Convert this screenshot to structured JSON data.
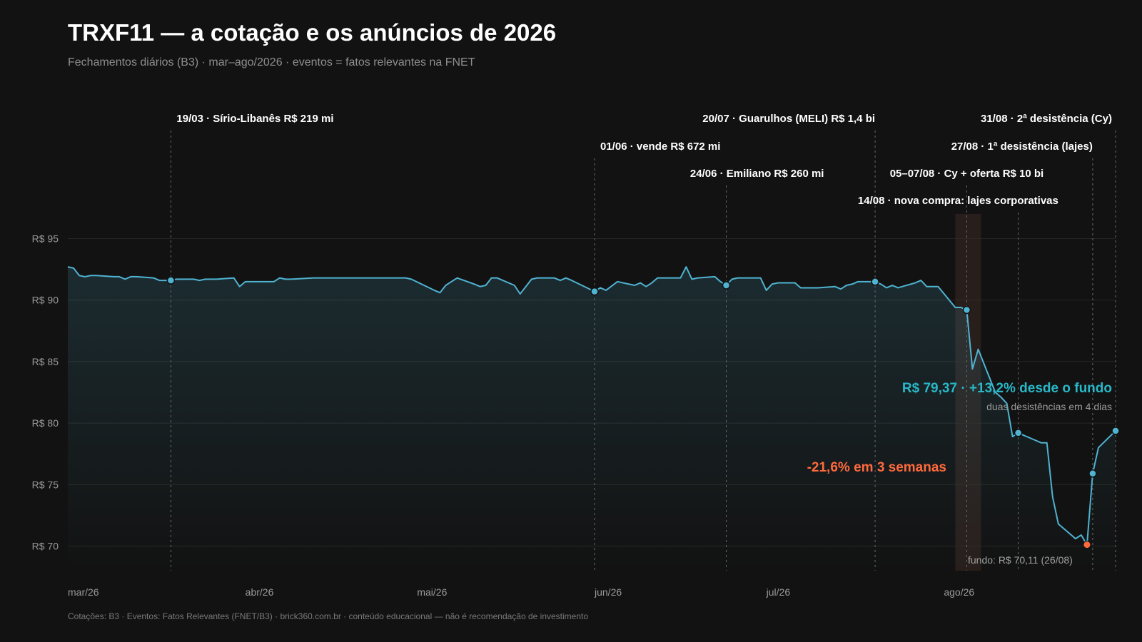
{
  "title": "TRXF11 — a cotação e os anúncios de 2026",
  "subtitle": "Fechamentos diários (B3) · mar–ago/2026 · eventos = fatos relevantes na FNET",
  "source": "Cotações: B3 · Eventos: Fatos Relevantes (FNET/B3) · brick360.com.br · conteúdo educacional — não é recomendação de investimento",
  "colors": {
    "line": "#4fb3d1",
    "highlight": "#ff6a3d",
    "recovery": "#29b8c8",
    "shade": "#3a2a24"
  },
  "annotations": {
    "recovery": "R$ 79,37 · +13,2% desde o fundo",
    "recovery_sub": "duas desistências em 4 dias",
    "drop": "-21,6% em 3 semanas",
    "low": "fundo: R$ 70,11 (26/08)"
  },
  "chart_data": {
    "type": "line",
    "title": "TRXF11 — a cotação e os anúncios de 2026",
    "ylim": [
      68,
      97
    ],
    "yticks": [
      95,
      90,
      85,
      80,
      75,
      70
    ],
    "ytick_labels": [
      "R$ 95",
      "R$ 90",
      "R$ 85",
      "R$ 80",
      "R$ 75",
      "R$ 70"
    ],
    "xticks": [
      {
        "date": "2026-03-01",
        "label": "mar/26"
      },
      {
        "date": "2026-04-01",
        "label": "abr/26"
      },
      {
        "date": "2026-05-01",
        "label": "mai/26"
      },
      {
        "date": "2026-06-01",
        "label": "jun/26"
      },
      {
        "date": "2026-07-01",
        "label": "jul/26"
      },
      {
        "date": "2026-08-01",
        "label": "ago/26"
      }
    ],
    "grid": true,
    "series": [
      {
        "x": [
          "2026-03-01",
          "2026-03-02",
          "2026-03-03",
          "2026-03-04",
          "2026-03-05",
          "2026-03-06",
          "2026-03-09",
          "2026-03-10",
          "2026-03-11",
          "2026-03-12",
          "2026-03-13",
          "2026-03-16",
          "2026-03-17",
          "2026-03-18",
          "2026-03-19",
          "2026-03-20",
          "2026-03-23",
          "2026-03-24",
          "2026-03-25",
          "2026-03-26",
          "2026-03-27",
          "2026-03-30",
          "2026-03-31",
          "2026-04-01",
          "2026-04-02",
          "2026-04-06",
          "2026-04-07",
          "2026-04-08",
          "2026-04-09",
          "2026-04-13",
          "2026-04-14",
          "2026-04-15",
          "2026-04-16",
          "2026-04-20",
          "2026-04-22",
          "2026-04-24",
          "2026-04-27",
          "2026-04-28",
          "2026-04-29",
          "2026-04-30",
          "2026-05-04",
          "2026-05-05",
          "2026-05-06",
          "2026-05-07",
          "2026-05-08",
          "2026-05-11",
          "2026-05-12",
          "2026-05-13",
          "2026-05-14",
          "2026-05-15",
          "2026-05-18",
          "2026-05-19",
          "2026-05-20",
          "2026-05-21",
          "2026-05-22",
          "2026-05-25",
          "2026-05-26",
          "2026-05-27",
          "2026-05-28",
          "2026-06-01",
          "2026-06-02",
          "2026-06-03",
          "2026-06-05",
          "2026-06-08",
          "2026-06-09",
          "2026-06-10",
          "2026-06-11",
          "2026-06-12",
          "2026-06-15",
          "2026-06-16",
          "2026-06-17",
          "2026-06-18",
          "2026-06-19",
          "2026-06-22",
          "2026-06-23",
          "2026-06-24",
          "2026-06-25",
          "2026-06-26",
          "2026-06-29",
          "2026-06-30",
          "2026-07-01",
          "2026-07-02",
          "2026-07-03",
          "2026-07-06",
          "2026-07-07",
          "2026-07-08",
          "2026-07-09",
          "2026-07-10",
          "2026-07-13",
          "2026-07-14",
          "2026-07-15",
          "2026-07-16",
          "2026-07-17",
          "2026-07-20",
          "2026-07-21",
          "2026-07-22",
          "2026-07-23",
          "2026-07-24",
          "2026-07-27",
          "2026-07-28",
          "2026-07-29",
          "2026-07-30",
          "2026-07-31",
          "2026-08-03",
          "2026-08-04",
          "2026-08-05",
          "2026-08-06",
          "2026-08-07",
          "2026-08-10",
          "2026-08-11",
          "2026-08-12",
          "2026-08-13",
          "2026-08-14",
          "2026-08-17",
          "2026-08-18",
          "2026-08-19",
          "2026-08-20",
          "2026-08-21",
          "2026-08-24",
          "2026-08-25",
          "2026-08-26",
          "2026-08-27",
          "2026-08-28",
          "2026-08-31"
        ],
        "y": [
          92.7,
          92.6,
          92.0,
          91.9,
          92.0,
          92.0,
          91.9,
          91.9,
          91.7,
          91.9,
          91.9,
          91.8,
          91.6,
          91.6,
          91.6,
          91.7,
          91.7,
          91.6,
          91.7,
          91.7,
          91.7,
          91.8,
          91.1,
          91.5,
          91.5,
          91.5,
          91.8,
          91.7,
          91.7,
          91.8,
          91.8,
          91.8,
          91.8,
          91.8,
          91.8,
          91.8,
          91.8,
          91.8,
          91.8,
          91.7,
          90.8,
          90.6,
          91.2,
          91.5,
          91.8,
          91.3,
          91.1,
          91.2,
          91.8,
          91.8,
          91.2,
          90.5,
          91.1,
          91.7,
          91.8,
          91.8,
          91.6,
          91.8,
          91.6,
          90.7,
          91.0,
          90.8,
          91.5,
          91.2,
          91.4,
          91.1,
          91.4,
          91.8,
          91.8,
          91.8,
          92.7,
          91.7,
          91.8,
          91.9,
          91.5,
          91.2,
          91.7,
          91.8,
          91.8,
          91.8,
          90.8,
          91.3,
          91.4,
          91.4,
          91.0,
          91.0,
          91.0,
          91.0,
          91.1,
          90.9,
          91.2,
          91.3,
          91.5,
          91.5,
          91.3,
          91.0,
          91.2,
          91.0,
          91.4,
          91.6,
          91.1,
          91.1,
          91.1,
          89.4,
          89.4,
          89.2,
          84.4,
          86.0,
          82.5,
          82.1,
          81.6,
          78.9,
          79.2,
          78.6,
          78.4,
          78.4,
          74.0,
          71.8,
          70.6,
          70.9,
          70.1,
          75.9,
          78.0,
          79.37
        ]
      }
    ],
    "events": [
      {
        "date": "2026-03-19",
        "value": 91.6,
        "label": "19/03 · Sírio-Libanês R$ 219 mi",
        "row": 0
      },
      {
        "date": "2026-06-01",
        "value": 90.7,
        "label": "01/06 · vende R$ 672 mi",
        "row": 1
      },
      {
        "date": "2026-06-24",
        "value": 91.2,
        "label": "24/06 · Emiliano R$ 260 mi",
        "row": 2
      },
      {
        "date": "2026-07-20",
        "value": 91.5,
        "label": "20/07 · Guarulhos (MELI) R$ 1,4 bi",
        "row": 0
      },
      {
        "date": "2026-08-05",
        "value": 89.2,
        "label": "05–07/08 · Cy + oferta R$ 10 bi",
        "row": 2
      },
      {
        "date": "2026-08-14",
        "value": 79.2,
        "label": "14/08 · nova compra: lajes corporativas",
        "row": 3
      },
      {
        "date": "2026-08-27",
        "value": 75.9,
        "label": "27/08 · 1ª desistência (lajes)",
        "row": 1
      },
      {
        "date": "2026-08-31",
        "value": 79.37,
        "label": "31/08 · 2ª desistência (Cy)",
        "row": 0
      }
    ],
    "low": {
      "date": "2026-08-26",
      "value": 70.11
    },
    "shaded_range": [
      "2026-08-04",
      "2026-08-07"
    ]
  }
}
